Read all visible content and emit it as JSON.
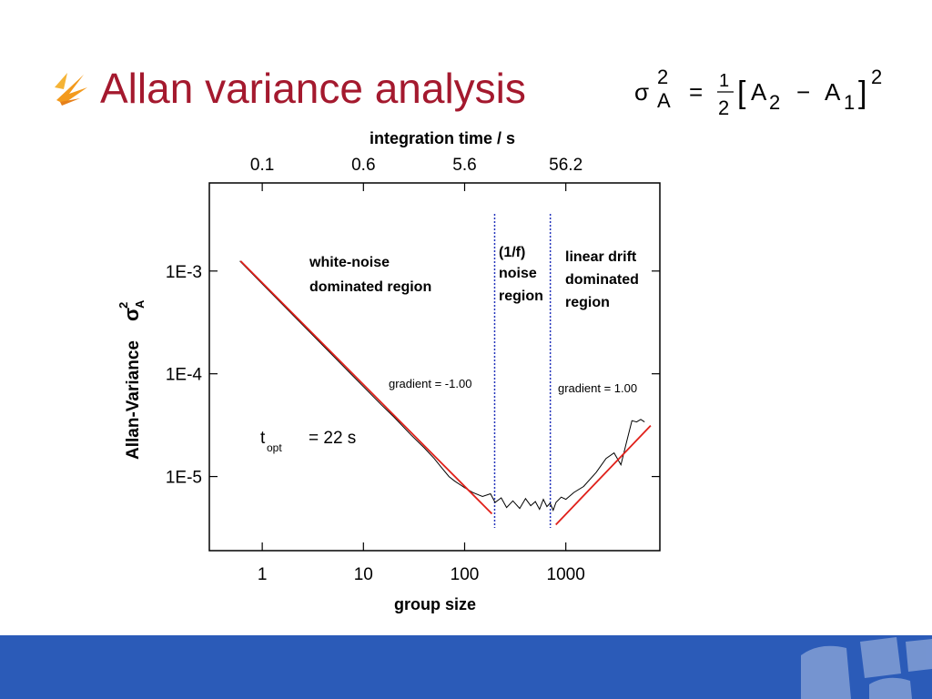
{
  "slide": {
    "title": "Allan variance analysis",
    "formula": [
      "σ",
      "2",
      "A",
      "=",
      "1",
      "2",
      "[",
      "A",
      "2",
      "−",
      "A",
      "1",
      "]",
      "2"
    ]
  },
  "chart_data": {
    "type": "line",
    "xlabel": "group size",
    "x2label": "integration time / s",
    "ylabel": {
      "text": "Allan-Variance",
      "symbol": "σ",
      "sub": "A",
      "sup": "2"
    },
    "xscale": "log",
    "yscale": "log",
    "xlim": [
      0.3,
      8500
    ],
    "ylim": [
      1.9e-06,
      0.0072
    ],
    "xticks": [
      1,
      10,
      100,
      1000
    ],
    "x2ticks": [
      {
        "value": 1,
        "label": "0.1"
      },
      {
        "value": 10,
        "label": "0.6"
      },
      {
        "value": 100,
        "label": "5.6"
      },
      {
        "value": 1000,
        "label": "56.2"
      }
    ],
    "yticks": [
      {
        "value": 1e-05,
        "label": "1E-5"
      },
      {
        "value": 0.0001,
        "label": "1E-4"
      },
      {
        "value": 0.001,
        "label": "1E-3"
      }
    ],
    "series": [
      {
        "color": "#000000",
        "x": [
          0.6,
          1,
          1.5,
          2,
          3,
          5,
          7,
          10,
          15,
          20,
          30,
          40,
          50,
          60,
          70,
          80,
          100,
          120,
          150,
          180,
          200,
          230,
          260,
          300,
          350,
          400,
          450,
          500,
          550,
          600,
          650,
          700,
          750,
          800,
          900,
          1000,
          1200,
          1500,
          2000,
          2500,
          3000,
          3500,
          4000,
          4500,
          5000,
          5500,
          6000
        ],
        "values": [
          0.00125,
          0.00075,
          0.0005,
          0.000375,
          0.00025,
          0.00015,
          0.000107,
          7.5e-05,
          5e-05,
          3.8e-05,
          2.5e-05,
          1.9e-05,
          1.5e-05,
          1.2e-05,
          1e-05,
          9e-06,
          7.8e-06,
          7e-06,
          6.4e-06,
          6.8e-06,
          5.6e-06,
          6.2e-06,
          5e-06,
          5.8e-06,
          4.9e-06,
          6.1e-06,
          5.2e-06,
          5.7e-06,
          4.8e-06,
          6e-06,
          5.1e-06,
          5.5e-06,
          4.7e-06,
          5.6e-06,
          6.3e-06,
          6e-06,
          7e-06,
          8e-06,
          1.1e-05,
          1.5e-05,
          1.7e-05,
          1.3e-05,
          2.2e-05,
          3.5e-05,
          3.4e-05,
          3.6e-05,
          3.4e-05
        ]
      },
      {
        "color": "#e0201a",
        "x": [
          0.61,
          186
        ],
        "values": [
          0.00125,
          4.34e-06
        ]
      },
      {
        "color": "#e0201a",
        "x": [
          796,
          6890
        ],
        "values": [
          3.4e-06,
          3.13e-05
        ]
      }
    ],
    "vlines": [
      198,
      703
    ],
    "vline_color": "#2233bb",
    "annotations": {
      "white_noise": [
        "white-noise",
        "dominated region"
      ],
      "flicker": [
        "(1/f)",
        "noise",
        "region"
      ],
      "drift": [
        "linear drift",
        "dominated",
        "region"
      ],
      "gradient_left": "gradient = -1.00",
      "gradient_right": "gradient = 1.00",
      "t_opt": {
        "t": "t",
        "sub": "opt",
        "rest": "= 22 s"
      }
    }
  }
}
